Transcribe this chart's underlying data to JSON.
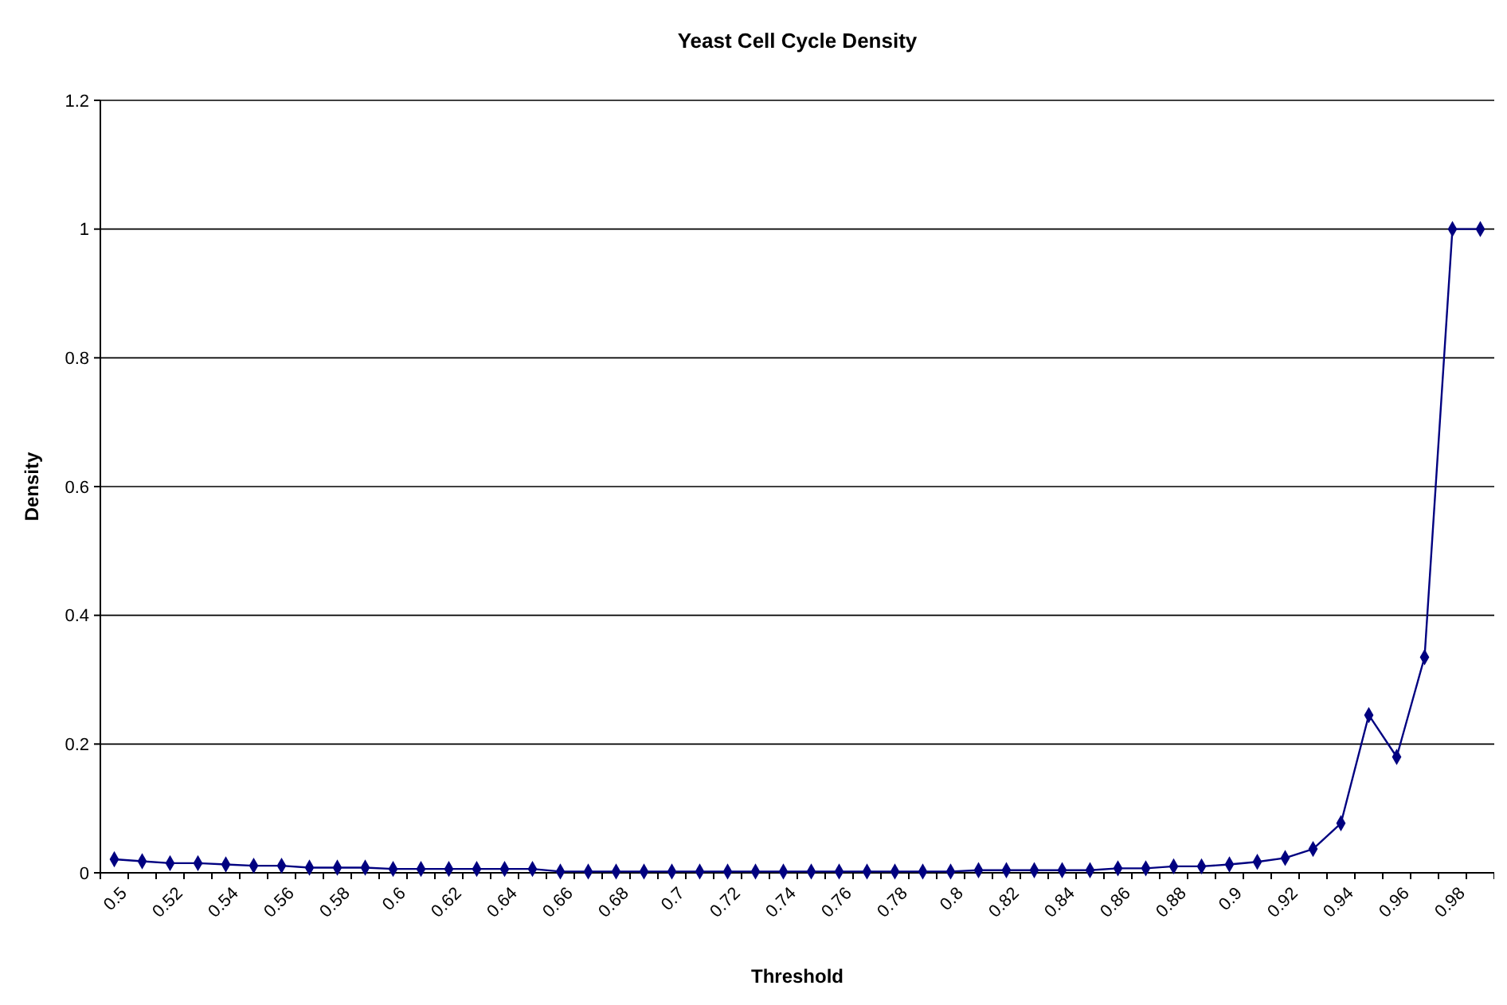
{
  "chart_data": {
    "type": "line",
    "title": "Yeast Cell Cycle Density",
    "xlabel": "Threshold",
    "ylabel": "Density",
    "categories": [
      "0.5",
      null,
      "0.52",
      null,
      "0.54",
      null,
      "0.56",
      null,
      "0.58",
      null,
      "0.6",
      null,
      "0.62",
      null,
      "0.64",
      null,
      "0.66",
      null,
      "0.68",
      null,
      "0.7",
      null,
      "0.72",
      null,
      "0.74",
      null,
      "0.76",
      null,
      "0.78",
      null,
      "0.8",
      null,
      "0.82",
      null,
      "0.84",
      null,
      "0.86",
      null,
      "0.88",
      null,
      "0.9",
      null,
      "0.92",
      null,
      "0.94",
      null,
      "0.96",
      null,
      "0.98",
      null
    ],
    "series": [
      {
        "color": "#000080",
        "values": [
          0.021,
          0.018,
          0.015,
          0.015,
          0.013,
          0.011,
          0.011,
          0.008,
          0.008,
          0.008,
          0.006,
          0.006,
          0.006,
          0.006,
          0.006,
          0.006,
          0.002,
          0.002,
          0.002,
          0.002,
          0.002,
          0.002,
          0.002,
          0.002,
          0.002,
          0.002,
          0.002,
          0.002,
          0.002,
          0.002,
          0.002,
          0.004,
          0.004,
          0.004,
          0.004,
          0.004,
          0.007,
          0.007,
          0.01,
          0.01,
          0.013,
          0.017,
          0.023,
          0.037,
          0.077,
          0.245,
          0.18,
          0.335,
          1,
          1
        ]
      }
    ],
    "ylim": [
      0,
      1.2
    ],
    "yticks": [
      0,
      0.2,
      0.4,
      0.6,
      0.8,
      1,
      1.2
    ],
    "grid": "y",
    "marker": "diamond",
    "line_style": "solid"
  }
}
